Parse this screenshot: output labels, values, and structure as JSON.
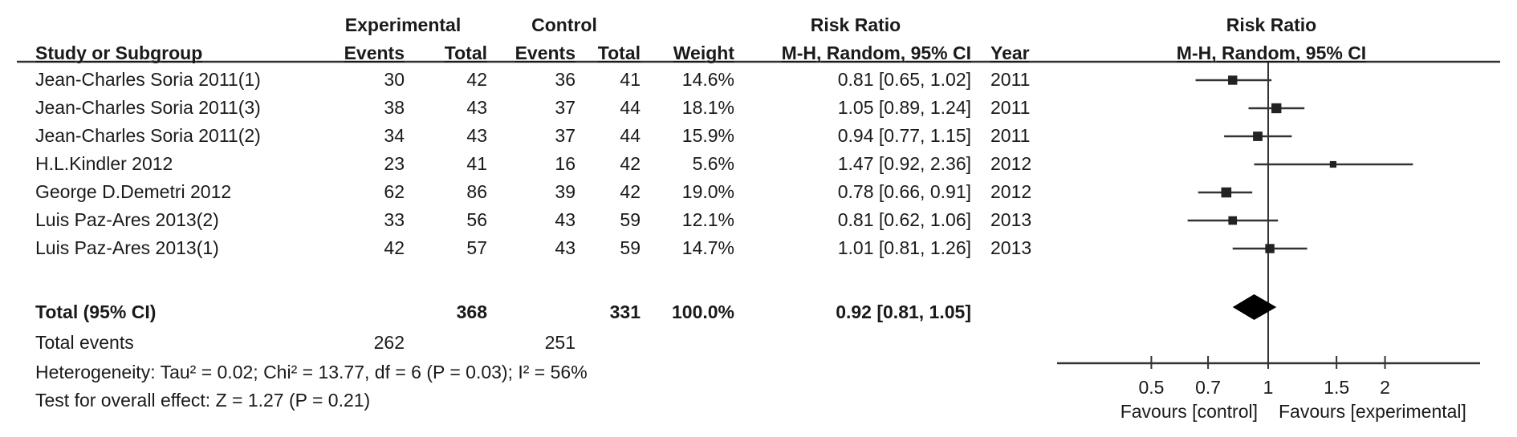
{
  "header": {
    "group1": "Experimental",
    "group2": "Control",
    "rr_title": "Risk Ratio",
    "columns": {
      "study": "Study or Subgroup",
      "exp_events": "Events",
      "exp_total": "Total",
      "ctl_events": "Events",
      "ctl_total": "Total",
      "weight": "Weight",
      "rr": "M-H, Random, 95% CI",
      "year": "Year"
    },
    "plot_title": "Risk Ratio",
    "plot_subtitle": "M-H, Random, 95% CI"
  },
  "rows": [
    {
      "study": "Jean-Charles Soria 2011(1)",
      "exp_events": "30",
      "exp_total": "42",
      "ctl_events": "36",
      "ctl_total": "41",
      "weight": "14.6%",
      "rr": "0.81 [0.65, 1.02]",
      "year": "2011"
    },
    {
      "study": "Jean-Charles Soria 2011(3)",
      "exp_events": "38",
      "exp_total": "43",
      "ctl_events": "37",
      "ctl_total": "44",
      "weight": "18.1%",
      "rr": "1.05 [0.89, 1.24]",
      "year": "2011"
    },
    {
      "study": "Jean-Charles Soria 2011(2)",
      "exp_events": "34",
      "exp_total": "43",
      "ctl_events": "37",
      "ctl_total": "44",
      "weight": "15.9%",
      "rr": "0.94 [0.77, 1.15]",
      "year": "2011"
    },
    {
      "study": "H.L.Kindler 2012",
      "exp_events": "23",
      "exp_total": "41",
      "ctl_events": "16",
      "ctl_total": "42",
      "weight": "5.6%",
      "rr": "1.47 [0.92, 2.36]",
      "year": "2012"
    },
    {
      "study": "George D.Demetri 2012",
      "exp_events": "62",
      "exp_total": "86",
      "ctl_events": "39",
      "ctl_total": "42",
      "weight": "19.0%",
      "rr": "0.78 [0.66, 0.91]",
      "year": "2012"
    },
    {
      "study": "Luis Paz-Ares 2013(2)",
      "exp_events": "33",
      "exp_total": "56",
      "ctl_events": "43",
      "ctl_total": "59",
      "weight": "12.1%",
      "rr": "0.81 [0.62, 1.06]",
      "year": "2013"
    },
    {
      "study": "Luis Paz-Ares 2013(1)",
      "exp_events": "42",
      "exp_total": "57",
      "ctl_events": "43",
      "ctl_total": "59",
      "weight": "14.7%",
      "rr": "1.01 [0.81, 1.26]",
      "year": "2013"
    }
  ],
  "total": {
    "label": "Total (95% CI)",
    "exp_total": "368",
    "ctl_total": "331",
    "weight": "100.0%",
    "rr": "0.92 [0.81, 1.05]"
  },
  "total_events": {
    "label": "Total events",
    "exp": "262",
    "ctl": "251"
  },
  "heterogeneity": "Heterogeneity: Tau² = 0.02; Chi² = 13.77, df = 6 (P = 0.03); I² = 56%",
  "overall_effect": "Test for overall effect: Z = 1.27 (P = 0.21)",
  "chart_data": {
    "type": "forest",
    "scale": "log",
    "xlim": [
      0.28,
      3.4
    ],
    "ticks": [
      "0.5",
      "0.7",
      "1",
      "1.5",
      "2"
    ],
    "xlabel_left": "Favours [control]",
    "xlabel_right": "Favours [experimental]",
    "reference_line": 1,
    "studies": [
      {
        "rr": 0.81,
        "lo": 0.65,
        "hi": 1.02,
        "weight": 14.6
      },
      {
        "rr": 1.05,
        "lo": 0.89,
        "hi": 1.24,
        "weight": 18.1
      },
      {
        "rr": 0.94,
        "lo": 0.77,
        "hi": 1.15,
        "weight": 15.9
      },
      {
        "rr": 1.47,
        "lo": 0.92,
        "hi": 2.36,
        "weight": 5.6
      },
      {
        "rr": 0.78,
        "lo": 0.66,
        "hi": 0.91,
        "weight": 19.0
      },
      {
        "rr": 0.81,
        "lo": 0.62,
        "hi": 1.06,
        "weight": 12.1
      },
      {
        "rr": 1.01,
        "lo": 0.81,
        "hi": 1.26,
        "weight": 14.7
      }
    ],
    "pooled": {
      "rr": 0.92,
      "lo": 0.81,
      "hi": 1.05
    },
    "colors": {
      "line": "#333333",
      "marker": "#222222",
      "diamond": "#000000"
    }
  }
}
